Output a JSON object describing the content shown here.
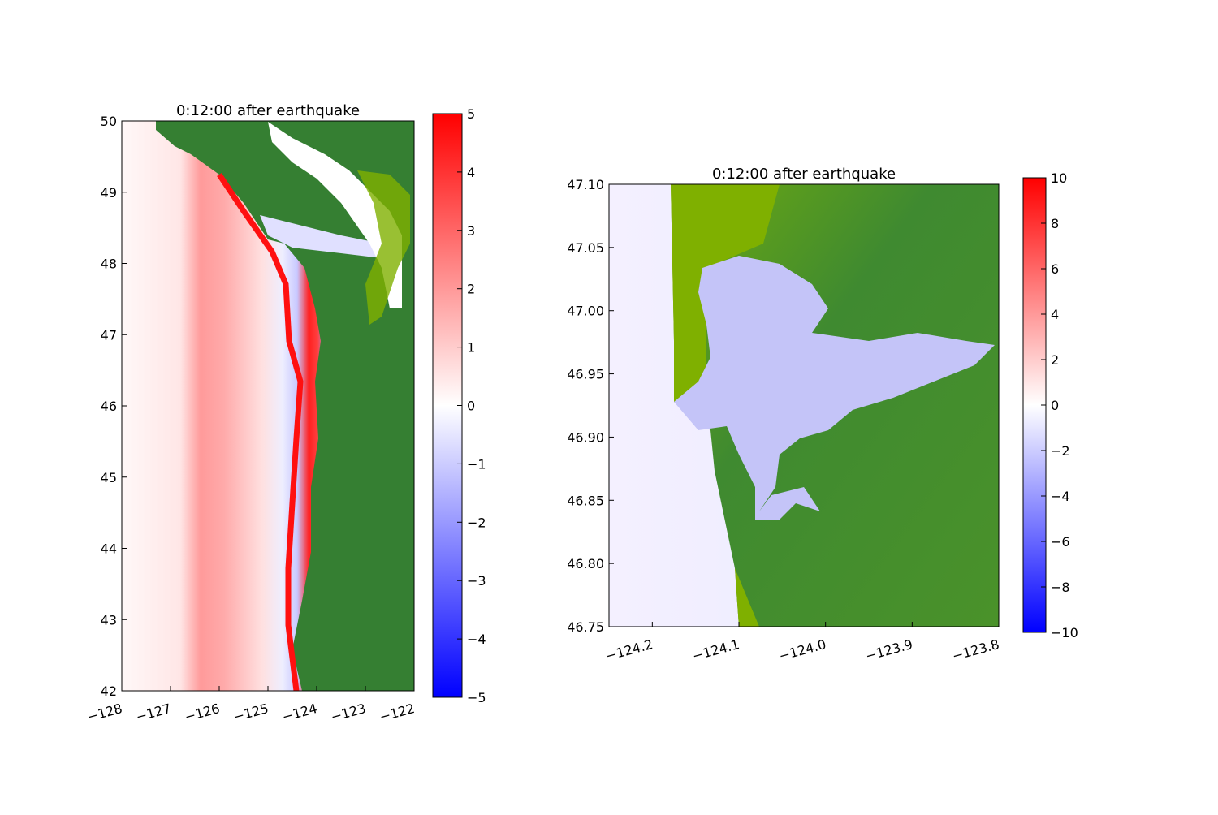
{
  "chart_data": [
    {
      "type": "heatmap",
      "title": "0:12:00 after earthquake",
      "xlim": [
        -128,
        -122
      ],
      "ylim": [
        42,
        50
      ],
      "xticks": [
        -128,
        -127,
        -126,
        -125,
        -124,
        -123,
        -122
      ],
      "xtick_labels": [
        "−128",
        "−127",
        "−126",
        "−125",
        "−124",
        "−123",
        "−122"
      ],
      "yticks": [
        42,
        43,
        44,
        45,
        46,
        47,
        48,
        49,
        50
      ],
      "ytick_labels": [
        "42",
        "43",
        "44",
        "45",
        "46",
        "47",
        "48",
        "49",
        "50"
      ],
      "colorbar": {
        "range": [
          -5,
          5
        ],
        "ticks": [
          -5,
          -4,
          -3,
          -2,
          -1,
          0,
          1,
          2,
          3,
          4,
          5
        ],
        "tick_labels": [
          "−5",
          "−4",
          "−3",
          "−2",
          "−1",
          "0",
          "1",
          "2",
          "3",
          "4",
          "5"
        ],
        "colormap": "bwr"
      },
      "land_color": "#357f32",
      "land_color_light": "#7fb000"
    },
    {
      "type": "heatmap",
      "title": "0:12:00 after earthquake",
      "xlim": [
        -124.25,
        -123.8
      ],
      "ylim": [
        46.75,
        47.1
      ],
      "xticks": [
        -124.2,
        -124.1,
        -124.0,
        -123.9,
        -123.8
      ],
      "xtick_labels": [
        "−124.2",
        "−124.1",
        "−124.0",
        "−123.9",
        "−123.8"
      ],
      "yticks": [
        46.75,
        46.8,
        46.85,
        46.9,
        46.95,
        47.0,
        47.05,
        47.1
      ],
      "ytick_labels": [
        "46.75",
        "46.80",
        "46.85",
        "46.90",
        "46.95",
        "47.00",
        "47.05",
        "47.10"
      ],
      "colorbar": {
        "range": [
          -10,
          10
        ],
        "ticks": [
          -10,
          -8,
          -6,
          -4,
          -2,
          0,
          2,
          4,
          6,
          8,
          10
        ],
        "tick_labels": [
          "−10",
          "−8",
          "−6",
          "−4",
          "−2",
          "0",
          "2",
          "4",
          "6",
          "8",
          "10"
        ],
        "colormap": "bwr"
      },
      "land_color": "#357f32",
      "land_color_light": "#7fb000"
    }
  ]
}
